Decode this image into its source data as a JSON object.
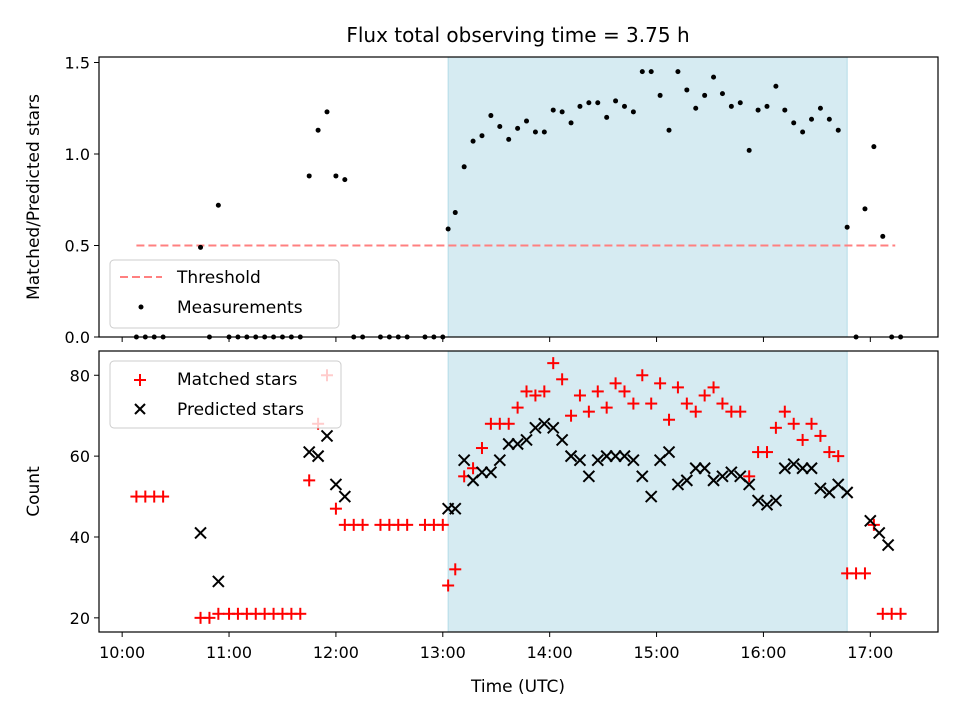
{
  "figure": {
    "title": "Flux total observing time = 3.75 h",
    "xlabel": "Time (UTC)"
  },
  "chart_data": [
    {
      "type": "scatter",
      "ylabel": "Matched/Predicted stars",
      "ylim": [
        0,
        1.53
      ],
      "yticks": [
        0.0,
        0.5,
        1.0,
        1.5
      ],
      "ytick_labels": [
        "0.0",
        "0.5",
        "1.0",
        "1.5"
      ],
      "xlim": [
        "09:47",
        "17:38"
      ],
      "legend": {
        "placement": "lower-left",
        "entries": [
          "Threshold",
          "Measurements"
        ]
      },
      "shaded_interval": {
        "start": "13:03",
        "end": "16:47",
        "color": "#add8e6"
      },
      "threshold": {
        "name": "Threshold",
        "value": 0.5,
        "x_start": "10:08",
        "x_end": "17:14",
        "color": "#ff8080"
      },
      "series": [
        {
          "name": "Measurements",
          "color": "#000000",
          "points": [
            [
              "10:08",
              0
            ],
            [
              "10:13",
              0
            ],
            [
              "10:18",
              0
            ],
            [
              "10:23",
              0
            ],
            [
              "10:44",
              0.49
            ],
            [
              "10:49",
              0
            ],
            [
              "10:54",
              0.72
            ],
            [
              "11:00",
              0
            ],
            [
              "11:05",
              0
            ],
            [
              "11:10",
              0
            ],
            [
              "11:15",
              0
            ],
            [
              "11:20",
              0
            ],
            [
              "11:25",
              0
            ],
            [
              "11:30",
              0
            ],
            [
              "11:35",
              0
            ],
            [
              "11:40",
              0
            ],
            [
              "11:45",
              0.88
            ],
            [
              "11:50",
              1.13
            ],
            [
              "11:55",
              1.23
            ],
            [
              "12:00",
              0.88
            ],
            [
              "12:05",
              0.86
            ],
            [
              "12:10",
              0
            ],
            [
              "12:15",
              0
            ],
            [
              "12:25",
              0
            ],
            [
              "12:30",
              0
            ],
            [
              "12:35",
              0
            ],
            [
              "12:40",
              0
            ],
            [
              "12:50",
              0
            ],
            [
              "12:55",
              0
            ],
            [
              "13:00",
              0
            ],
            [
              "13:03",
              0.59
            ],
            [
              "13:07",
              0.68
            ],
            [
              "13:12",
              0.93
            ],
            [
              "13:17",
              1.07
            ],
            [
              "13:22",
              1.1
            ],
            [
              "13:27",
              1.21
            ],
            [
              "13:32",
              1.15
            ],
            [
              "13:37",
              1.08
            ],
            [
              "13:42",
              1.14
            ],
            [
              "13:47",
              1.18
            ],
            [
              "13:52",
              1.12
            ],
            [
              "13:57",
              1.12
            ],
            [
              "14:02",
              1.24
            ],
            [
              "14:07",
              1.23
            ],
            [
              "14:12",
              1.17
            ],
            [
              "14:17",
              1.26
            ],
            [
              "14:22",
              1.28
            ],
            [
              "14:27",
              1.28
            ],
            [
              "14:32",
              1.2
            ],
            [
              "14:37",
              1.29
            ],
            [
              "14:42",
              1.26
            ],
            [
              "14:47",
              1.23
            ],
            [
              "14:52",
              1.45
            ],
            [
              "14:57",
              1.45
            ],
            [
              "15:02",
              1.32
            ],
            [
              "15:07",
              1.13
            ],
            [
              "15:12",
              1.45
            ],
            [
              "15:17",
              1.35
            ],
            [
              "15:22",
              1.25
            ],
            [
              "15:27",
              1.32
            ],
            [
              "15:32",
              1.42
            ],
            [
              "15:37",
              1.33
            ],
            [
              "15:42",
              1.26
            ],
            [
              "15:47",
              1.28
            ],
            [
              "15:52",
              1.02
            ],
            [
              "15:57",
              1.24
            ],
            [
              "16:02",
              1.26
            ],
            [
              "16:07",
              1.37
            ],
            [
              "16:12",
              1.24
            ],
            [
              "16:17",
              1.17
            ],
            [
              "16:22",
              1.12
            ],
            [
              "16:27",
              1.19
            ],
            [
              "16:32",
              1.25
            ],
            [
              "16:37",
              1.19
            ],
            [
              "16:42",
              1.13
            ],
            [
              "16:47",
              0.6
            ],
            [
              "16:52",
              0
            ],
            [
              "16:57",
              0.7
            ],
            [
              "17:02",
              1.04
            ],
            [
              "17:07",
              0.55
            ],
            [
              "17:12",
              0
            ],
            [
              "17:17",
              0
            ]
          ]
        }
      ]
    },
    {
      "type": "scatter",
      "ylabel": "Count",
      "ylim": [
        16.5,
        86
      ],
      "yticks": [
        20,
        40,
        60,
        80
      ],
      "ytick_labels": [
        "20",
        "40",
        "60",
        "80"
      ],
      "xlim": [
        "09:47",
        "17:38"
      ],
      "xticks": [
        "10:00",
        "11:00",
        "12:00",
        "13:00",
        "14:00",
        "15:00",
        "16:00",
        "17:00"
      ],
      "xtick_labels": [
        "10:00",
        "11:00",
        "12:00",
        "13:00",
        "14:00",
        "15:00",
        "16:00",
        "17:00"
      ],
      "legend": {
        "placement": "upper-left",
        "entries": [
          "Matched stars",
          "Predicted stars"
        ]
      },
      "shaded_interval": {
        "start": "13:03",
        "end": "16:47",
        "color": "#add8e6"
      },
      "series": [
        {
          "name": "Matched stars",
          "marker": "plus",
          "color": "#ff0000",
          "points": [
            [
              "10:08",
              50
            ],
            [
              "10:13",
              50
            ],
            [
              "10:18",
              50
            ],
            [
              "10:23",
              50
            ],
            [
              "10:44",
              20
            ],
            [
              "10:49",
              20
            ],
            [
              "10:54",
              21
            ],
            [
              "11:00",
              21
            ],
            [
              "11:05",
              21
            ],
            [
              "11:10",
              21
            ],
            [
              "11:15",
              21
            ],
            [
              "11:20",
              21
            ],
            [
              "11:25",
              21
            ],
            [
              "11:30",
              21
            ],
            [
              "11:35",
              21
            ],
            [
              "11:40",
              21
            ],
            [
              "11:45",
              54
            ],
            [
              "11:50",
              68
            ],
            [
              "11:55",
              80
            ],
            [
              "12:00",
              47
            ],
            [
              "12:05",
              43
            ],
            [
              "12:10",
              43
            ],
            [
              "12:15",
              43
            ],
            [
              "12:25",
              43
            ],
            [
              "12:30",
              43
            ],
            [
              "12:35",
              43
            ],
            [
              "12:40",
              43
            ],
            [
              "12:50",
              43
            ],
            [
              "12:55",
              43
            ],
            [
              "13:00",
              43
            ],
            [
              "13:03",
              28
            ],
            [
              "13:07",
              32
            ],
            [
              "13:12",
              55
            ],
            [
              "13:17",
              57
            ],
            [
              "13:22",
              62
            ],
            [
              "13:27",
              68
            ],
            [
              "13:32",
              68
            ],
            [
              "13:37",
              68
            ],
            [
              "13:42",
              72
            ],
            [
              "13:47",
              76
            ],
            [
              "13:52",
              75
            ],
            [
              "13:57",
              76
            ],
            [
              "14:02",
              83
            ],
            [
              "14:07",
              79
            ],
            [
              "14:12",
              70
            ],
            [
              "14:17",
              75
            ],
            [
              "14:22",
              71
            ],
            [
              "14:27",
              76
            ],
            [
              "14:32",
              72
            ],
            [
              "14:37",
              78
            ],
            [
              "14:42",
              76
            ],
            [
              "14:47",
              73
            ],
            [
              "14:52",
              80
            ],
            [
              "14:57",
              73
            ],
            [
              "15:02",
              78
            ],
            [
              "15:07",
              69
            ],
            [
              "15:12",
              77
            ],
            [
              "15:17",
              73
            ],
            [
              "15:22",
              71
            ],
            [
              "15:27",
              75
            ],
            [
              "15:32",
              77
            ],
            [
              "15:37",
              73
            ],
            [
              "15:42",
              71
            ],
            [
              "15:47",
              71
            ],
            [
              "15:52",
              55
            ],
            [
              "15:57",
              61
            ],
            [
              "16:02",
              61
            ],
            [
              "16:07",
              67
            ],
            [
              "16:12",
              71
            ],
            [
              "16:17",
              68
            ],
            [
              "16:22",
              64
            ],
            [
              "16:27",
              68
            ],
            [
              "16:32",
              65
            ],
            [
              "16:37",
              61
            ],
            [
              "16:42",
              60
            ],
            [
              "16:47",
              31
            ],
            [
              "16:52",
              31
            ],
            [
              "16:57",
              31
            ],
            [
              "17:02",
              43
            ],
            [
              "17:07",
              21
            ],
            [
              "17:12",
              21
            ],
            [
              "17:17",
              21
            ]
          ]
        },
        {
          "name": "Predicted stars",
          "marker": "x",
          "color": "#000000",
          "points": [
            [
              "10:44",
              41
            ],
            [
              "10:54",
              29
            ],
            [
              "11:45",
              61
            ],
            [
              "11:50",
              60
            ],
            [
              "11:55",
              65
            ],
            [
              "12:00",
              53
            ],
            [
              "12:05",
              50
            ],
            [
              "13:03",
              47
            ],
            [
              "13:07",
              47
            ],
            [
              "13:12",
              59
            ],
            [
              "13:17",
              54
            ],
            [
              "13:22",
              56
            ],
            [
              "13:27",
              56
            ],
            [
              "13:32",
              59
            ],
            [
              "13:37",
              63
            ],
            [
              "13:42",
              63
            ],
            [
              "13:47",
              64
            ],
            [
              "13:52",
              67
            ],
            [
              "13:57",
              68
            ],
            [
              "14:02",
              67
            ],
            [
              "14:07",
              64
            ],
            [
              "14:12",
              60
            ],
            [
              "14:17",
              59
            ],
            [
              "14:22",
              55
            ],
            [
              "14:27",
              59
            ],
            [
              "14:32",
              60
            ],
            [
              "14:37",
              60
            ],
            [
              "14:42",
              60
            ],
            [
              "14:47",
              59
            ],
            [
              "14:52",
              55
            ],
            [
              "14:57",
              50
            ],
            [
              "15:02",
              59
            ],
            [
              "15:07",
              61
            ],
            [
              "15:12",
              53
            ],
            [
              "15:17",
              54
            ],
            [
              "15:22",
              57
            ],
            [
              "15:27",
              57
            ],
            [
              "15:32",
              54
            ],
            [
              "15:37",
              55
            ],
            [
              "15:42",
              56
            ],
            [
              "15:47",
              55
            ],
            [
              "15:52",
              53
            ],
            [
              "15:57",
              49
            ],
            [
              "16:02",
              48
            ],
            [
              "16:07",
              49
            ],
            [
              "16:12",
              57
            ],
            [
              "16:17",
              58
            ],
            [
              "16:22",
              57
            ],
            [
              "16:27",
              57
            ],
            [
              "16:32",
              52
            ],
            [
              "16:37",
              51
            ],
            [
              "16:42",
              53
            ],
            [
              "16:47",
              51
            ],
            [
              "17:00",
              44
            ],
            [
              "17:05",
              41
            ],
            [
              "17:10",
              38
            ]
          ]
        }
      ]
    }
  ]
}
